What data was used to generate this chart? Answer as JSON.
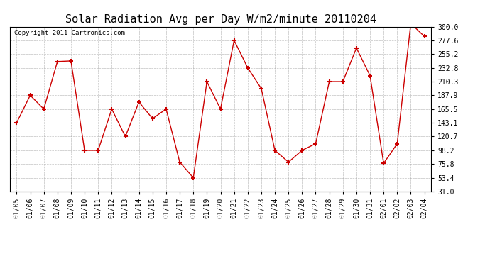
{
  "title": "Solar Radiation Avg per Day W/m2/minute 20110204",
  "copyright": "Copyright 2011 Cartronics.com",
  "dates": [
    "01/05",
    "01/06",
    "01/07",
    "01/08",
    "01/09",
    "01/10",
    "01/11",
    "01/12",
    "01/13",
    "01/14",
    "01/15",
    "01/16",
    "01/17",
    "01/18",
    "01/19",
    "01/20",
    "01/21",
    "01/22",
    "01/23",
    "01/24",
    "01/25",
    "01/26",
    "01/27",
    "01/28",
    "01/29",
    "01/30",
    "01/31",
    "02/01",
    "02/02",
    "02/03",
    "02/04"
  ],
  "values": [
    143.1,
    187.9,
    165.5,
    243.0,
    244.0,
    98.2,
    98.2,
    165.5,
    120.7,
    177.0,
    150.0,
    165.5,
    79.0,
    53.4,
    210.3,
    165.5,
    277.6,
    232.8,
    199.0,
    98.2,
    79.0,
    98.2,
    109.0,
    210.3,
    210.3,
    265.0,
    220.0,
    77.0,
    109.0,
    305.0,
    284.0
  ],
  "line_color": "#cc0000",
  "marker": "+",
  "marker_size": 5,
  "marker_linewidth": 1.5,
  "linewidth": 1.0,
  "ylim_min": 31.0,
  "ylim_max": 300.0,
  "yticks": [
    31.0,
    53.4,
    75.8,
    98.2,
    120.7,
    143.1,
    165.5,
    187.9,
    210.3,
    232.8,
    255.2,
    277.6,
    300.0
  ],
  "ytick_labels": [
    "31.0",
    "53.4",
    "75.8",
    "98.2",
    "120.7",
    "143.1",
    "165.5",
    "187.9",
    "210.3",
    "232.8",
    "255.2",
    "277.6",
    "300.0"
  ],
  "background_color": "#ffffff",
  "grid_color": "#999999",
  "title_fontsize": 11,
  "tick_fontsize": 7,
  "copyright_fontsize": 6.5,
  "fig_width": 6.9,
  "fig_height": 3.75,
  "dpi": 100
}
